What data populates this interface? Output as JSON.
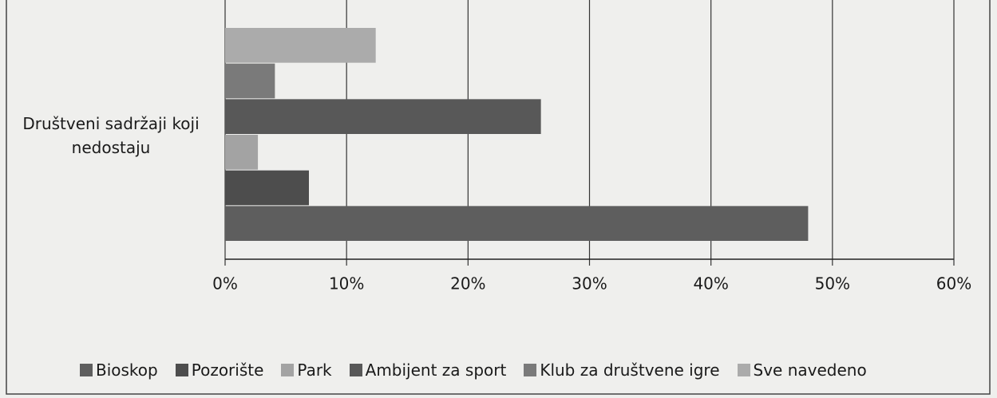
{
  "chart_data": {
    "type": "hbar",
    "categories": [
      "Društveni sadržaji koji nedostaju"
    ],
    "series": [
      {
        "name": "Bioskop",
        "color": "#5e5e5e",
        "values": [
          48.0
        ]
      },
      {
        "name": "Pozorište",
        "color": "#4d4d4d",
        "values": [
          6.9
        ]
      },
      {
        "name": "Park",
        "color": "#a3a3a3",
        "values": [
          2.7
        ]
      },
      {
        "name": "Ambijent za sport",
        "color": "#585858",
        "values": [
          26.0
        ]
      },
      {
        "name": "Klub za društvene igre",
        "color": "#7a7a7a",
        "values": [
          4.1
        ]
      },
      {
        "name": "Sve navedeno",
        "color": "#ababab",
        "values": [
          12.4
        ]
      }
    ],
    "xlim": [
      0,
      60
    ],
    "xticks": [
      {
        "value": 0,
        "label": "0%"
      },
      {
        "value": 10,
        "label": "10%"
      },
      {
        "value": 20,
        "label": "20%"
      },
      {
        "value": 30,
        "label": "30%"
      },
      {
        "value": 40,
        "label": "40%"
      },
      {
        "value": 50,
        "label": "50%"
      },
      {
        "value": 60,
        "label": "60%"
      }
    ],
    "grid": true
  }
}
